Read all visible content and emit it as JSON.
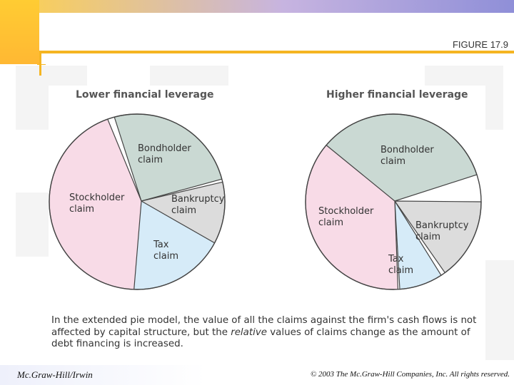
{
  "slide": {
    "figure_label": "FIGURE 17.9",
    "footer_left": "Mc.Graw-Hill/Irwin",
    "footer_right": "© 2003 The Mc.Graw-Hill Companies, Inc. All rights reserved.",
    "caption_part1": "In the extended pie model, the value of all the claims against the firm's cash flows is not affected by capital structure, but the ",
    "caption_italic": "relative",
    "caption_part2": " values of claims change as the amount of debt financing is increased."
  },
  "colors": {
    "bondholder": "#cad9d3",
    "bankruptcy": "#dcdcdc",
    "tax": "#d6ebf8",
    "stockholder": "#f8dbe7",
    "outline": "#444444",
    "accent": "#f5b522"
  },
  "chart_data": [
    {
      "type": "pie",
      "title": "Lower financial leverage",
      "slices": [
        {
          "label": "Bondholder claim",
          "value": 25
        },
        {
          "label": "Bankruptcy claim",
          "value": 12
        },
        {
          "label": "Tax claim",
          "value": 19
        },
        {
          "label": "Stockholder claim",
          "value": 44
        }
      ]
    },
    {
      "type": "pie",
      "title": "Higher financial leverage",
      "slices": [
        {
          "label": "Bondholder claim",
          "value": 40
        },
        {
          "label": "Bankruptcy claim",
          "value": 15
        },
        {
          "label": "Tax claim",
          "value": 8
        },
        {
          "label": "Stockholder claim",
          "value": 37
        }
      ]
    }
  ]
}
